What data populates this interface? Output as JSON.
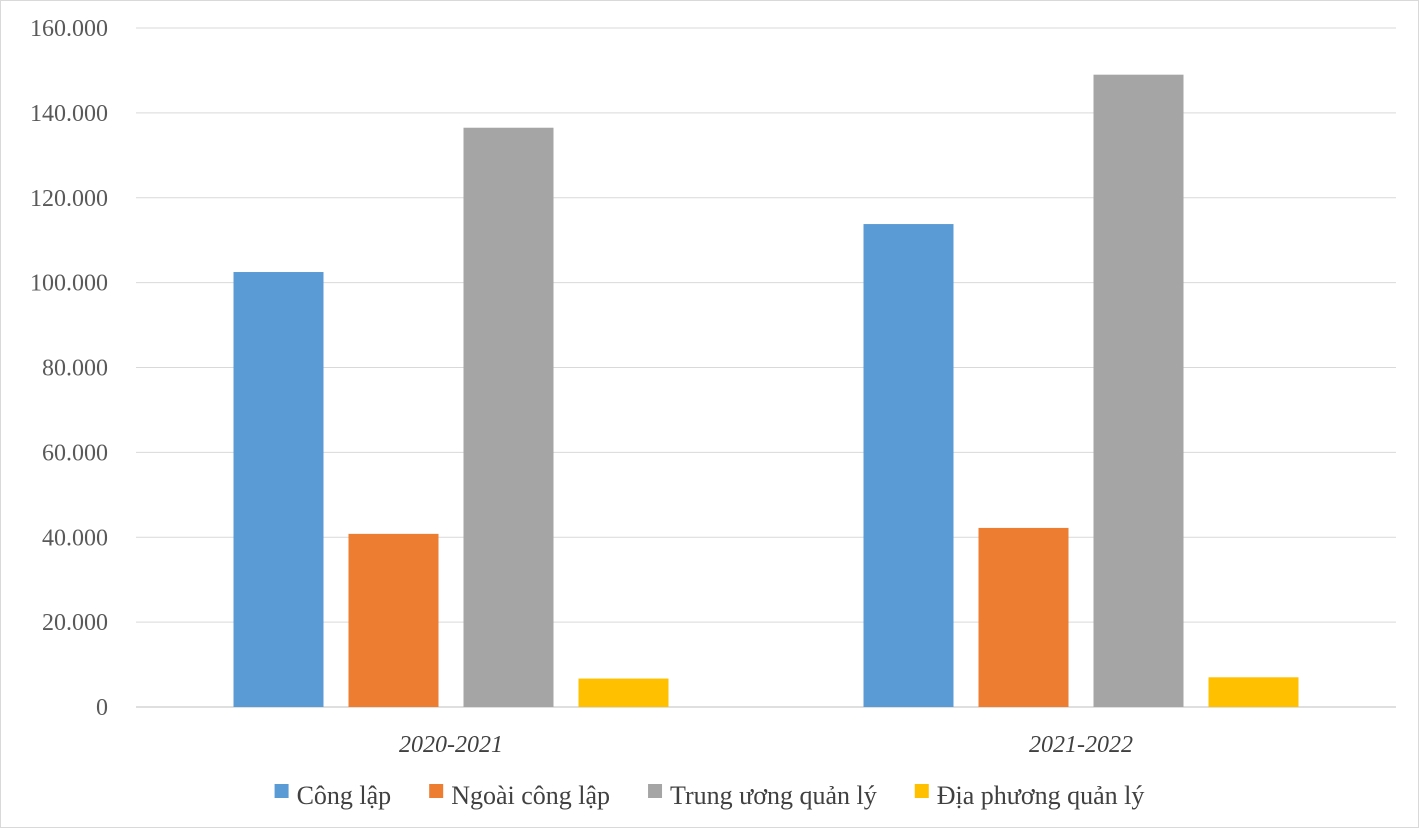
{
  "chart_data": {
    "type": "bar",
    "title": "",
    "xlabel": "",
    "ylabel": "",
    "categories": [
      "2020-2021",
      "2021-2022"
    ],
    "series": [
      {
        "name": "Công lập",
        "values": [
          102500,
          113800
        ],
        "color": "#5b9bd5"
      },
      {
        "name": "Ngoài công lập",
        "values": [
          40800,
          42200
        ],
        "color": "#ed7d31"
      },
      {
        "name": "Trung ương quản lý",
        "values": [
          136500,
          149000
        ],
        "color": "#a5a5a5"
      },
      {
        "name": "Địa phương quản lý",
        "values": [
          6700,
          7000
        ],
        "color": "#ffc000"
      }
    ],
    "ylim": [
      0,
      160000
    ],
    "yticks": [
      0,
      20000,
      40000,
      60000,
      80000,
      100000,
      120000,
      140000,
      160000
    ],
    "ytick_labels": [
      "0",
      "20.000",
      "40.000",
      "60.000",
      "80.000",
      "100.000",
      "120.000",
      "140.000",
      "160.000"
    ],
    "grid": true,
    "legend_position": "bottom"
  }
}
